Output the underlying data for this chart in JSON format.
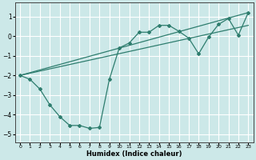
{
  "xlabel": "Humidex (Indice chaleur)",
  "bg_color": "#cce8e8",
  "line_color": "#2e7d6e",
  "grid_color": "#ffffff",
  "xlim": [
    -0.5,
    23.5
  ],
  "ylim": [
    -5.4,
    1.7
  ],
  "yticks": [
    -5,
    -4,
    -3,
    -2,
    -1,
    0,
    1
  ],
  "xticks": [
    0,
    1,
    2,
    3,
    4,
    5,
    6,
    7,
    8,
    9,
    10,
    11,
    12,
    13,
    14,
    15,
    16,
    17,
    18,
    19,
    20,
    21,
    22,
    23
  ],
  "line_zigzag": {
    "x": [
      0,
      1,
      2,
      3,
      4,
      5,
      6,
      7,
      8,
      9,
      10,
      11,
      12,
      13,
      14,
      15,
      16,
      17,
      18,
      19,
      20,
      21,
      22,
      23
    ],
    "y": [
      -2.0,
      -2.2,
      -2.7,
      -3.5,
      -4.1,
      -4.55,
      -4.55,
      -4.7,
      -4.65,
      -2.2,
      -0.6,
      -0.35,
      0.2,
      0.2,
      0.55,
      0.55,
      0.25,
      -0.1,
      -0.9,
      -0.05,
      0.6,
      0.9,
      0.05,
      1.2
    ]
  },
  "line_upper": {
    "x": [
      0,
      23
    ],
    "y": [
      -2.0,
      1.2
    ]
  },
  "line_lower": {
    "x": [
      0,
      23
    ],
    "y": [
      -2.0,
      0.55
    ]
  }
}
